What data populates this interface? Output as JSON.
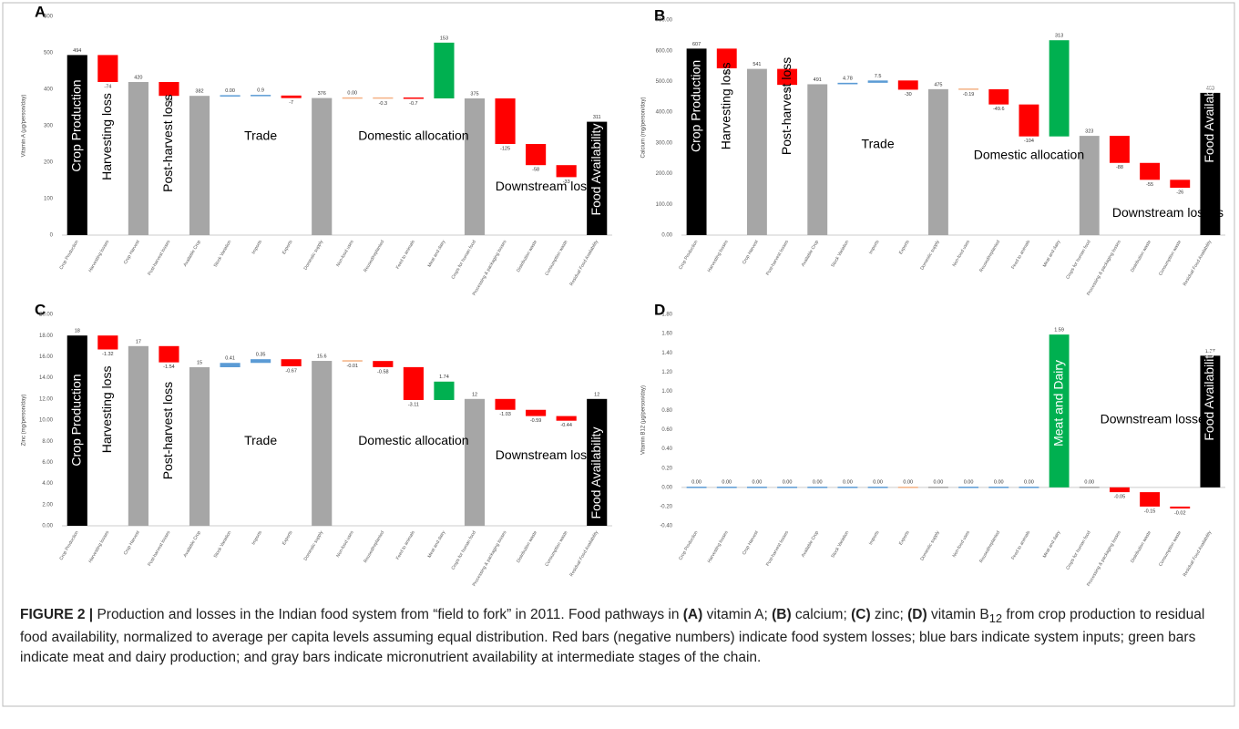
{
  "chart_data": [
    {
      "type": "waterfall",
      "panel": "A",
      "y_label": "Vitamin A (µg/person/day)",
      "categories": [
        "Crop Production",
        "Harvesting losses",
        "Crop Harvest",
        "Post-harvest losses",
        "Available Crop",
        "Stock Variation",
        "Imports",
        "Exports",
        "Domestic supply",
        "Non-food uses",
        "Reused/replanted",
        "Feed to animals",
        "Meat and dairy",
        "Crops for human food",
        "Processing & packaging losses",
        "Distribution waste",
        "Consumption waste",
        "Residual Food Availability"
      ],
      "measures": [
        "total",
        "relative",
        "total",
        "relative",
        "total",
        "relative",
        "relative",
        "relative",
        "total",
        "relative",
        "relative",
        "relative",
        "relative",
        "total",
        "relative",
        "relative",
        "relative",
        "total"
      ],
      "values": [
        494,
        -74,
        420,
        -38,
        382,
        0,
        0.9,
        -7,
        376,
        0,
        -0.3,
        -0.7,
        153,
        375,
        -125,
        -58,
        -33,
        311
      ],
      "value_labels": [
        "494",
        "-74",
        "420",
        "-38",
        "382",
        "0.00",
        "0.9",
        "-7",
        "376",
        "0.00",
        "-0.3",
        "-0.7",
        "153",
        "375",
        "-125",
        "-58",
        "-33",
        "311"
      ],
      "colors": [
        "#000000",
        "#ff0000",
        "#a6a6a6",
        "#ff0000",
        "#a6a6a6",
        "#5b9bd5",
        "#5b9bd5",
        "#ff0000",
        "#a6a6a6",
        "#f4b183",
        "#f4b183",
        "#ff0000",
        "#00b050",
        "#a6a6a6",
        "#ff0000",
        "#ff0000",
        "#ff0000",
        "#000000"
      ],
      "ylim": [
        0,
        600
      ],
      "yticks": [
        0,
        100,
        200,
        300,
        400,
        500,
        600
      ],
      "annotations": [
        "Crop Production",
        "Harvesting loss",
        "Post-harvest loss",
        "Trade",
        "Domestic allocation",
        "Downstream losses",
        "Food Availability"
      ]
    },
    {
      "type": "waterfall",
      "panel": "B",
      "y_label": "Calcium (mg/person/day)",
      "categories": [
        "Crop Production",
        "Harvesting losses",
        "Crop Harvest",
        "Post-harvest losses",
        "Available Crop",
        "Stock Variation",
        "Imports",
        "Exports",
        "Domestic supply",
        "Non-food uses",
        "Reused/replanted",
        "Feed to animals",
        "Meat and dairy",
        "Crops for human food",
        "Processing & packaging losses",
        "Distribution waste",
        "Consumption waste",
        "Residual Food Availability"
      ],
      "measures": [
        "total",
        "relative",
        "total",
        "relative",
        "total",
        "relative",
        "relative",
        "relative",
        "total",
        "relative",
        "relative",
        "relative",
        "relative",
        "total",
        "relative",
        "relative",
        "relative",
        "total"
      ],
      "values": [
        607,
        -64,
        541,
        -52,
        491,
        4.78,
        7.5,
        -30,
        475,
        -0.19,
        -49.6,
        -104,
        313,
        323,
        -88,
        -55,
        -26,
        463
      ],
      "colors": [
        "#000000",
        "#ff0000",
        "#a6a6a6",
        "#ff0000",
        "#a6a6a6",
        "#5b9bd5",
        "#5b9bd5",
        "#ff0000",
        "#a6a6a6",
        "#f4b183",
        "#ff0000",
        "#ff0000",
        "#00b050",
        "#a6a6a6",
        "#ff0000",
        "#ff0000",
        "#ff0000",
        "#000000"
      ],
      "ylim": [
        0,
        700
      ],
      "yticks": [
        {
          "value": 0,
          "label": "0.00"
        },
        {
          "value": 100,
          "label": "100.00"
        },
        {
          "value": 200,
          "label": "200.00"
        },
        {
          "value": 300,
          "label": "300.00"
        },
        {
          "value": 400,
          "label": "400.00"
        },
        {
          "value": 500,
          "label": "500.00"
        },
        {
          "value": 600,
          "label": "600.00"
        },
        {
          "value": 700,
          "label": "700.00"
        }
      ],
      "annotations": [
        "Crop Production",
        "Harvesting loss",
        "Post-harvest loss",
        "Trade",
        "Domestic allocation",
        "Downstream losses",
        "Food Availability"
      ]
    },
    {
      "type": "waterfall",
      "panel": "C",
      "y_label": "Zinc (mg/person/day)",
      "categories": [
        "Crop Production",
        "Harvesting losses",
        "Crop Harvest",
        "Post-harvest losses",
        "Available Crop",
        "Stock Variation",
        "Imports",
        "Exports",
        "Domestic supply",
        "Non-food uses",
        "Reused/replanted",
        "Feed to animals",
        "Meat and dairy",
        "Crops for human food",
        "Processing & packaging losses",
        "Distribution waste",
        "Consumption waste",
        "Residual Food Availability"
      ],
      "measures": [
        "total",
        "relative",
        "total",
        "relative",
        "total",
        "relative",
        "relative",
        "relative",
        "total",
        "relative",
        "relative",
        "relative",
        "relative",
        "total",
        "relative",
        "relative",
        "relative",
        "total"
      ],
      "values": [
        18,
        -1.32,
        17,
        -1.54,
        15,
        0.41,
        0.35,
        -0.67,
        15.6,
        -0.01,
        -0.58,
        -3.11,
        1.74,
        12,
        -1.03,
        -0.59,
        -0.44,
        12
      ],
      "colors": [
        "#000000",
        "#ff0000",
        "#a6a6a6",
        "#ff0000",
        "#a6a6a6",
        "#5b9bd5",
        "#5b9bd5",
        "#ff0000",
        "#a6a6a6",
        "#f4b183",
        "#ff0000",
        "#ff0000",
        "#00b050",
        "#a6a6a6",
        "#ff0000",
        "#ff0000",
        "#ff0000",
        "#000000"
      ],
      "ylim": [
        0,
        20
      ],
      "yticks": [
        {
          "value": 0,
          "label": "0.00"
        },
        {
          "value": 2,
          "label": "2.00"
        },
        {
          "value": 4,
          "label": "4.00"
        },
        {
          "value": 6,
          "label": "6.00"
        },
        {
          "value": 8,
          "label": "8.00"
        },
        {
          "value": 10,
          "label": "10.00"
        },
        {
          "value": 12,
          "label": "12.00"
        },
        {
          "value": 14,
          "label": "14.00"
        },
        {
          "value": 16,
          "label": "16.00"
        },
        {
          "value": 18,
          "label": "18.00"
        },
        {
          "value": 20,
          "label": "20.00"
        }
      ],
      "annotations": [
        "Crop Production",
        "Harvesting loss",
        "Post-harvest loss",
        "Trade",
        "Domestic allocation",
        "Downstream losses",
        "Food Availability"
      ]
    },
    {
      "type": "waterfall",
      "panel": "D",
      "y_label": "Vitamin B12 (µg/person/day)",
      "categories": [
        "Crop Production",
        "Harvesting losses",
        "Crop Harvest",
        "Post-harvest losses",
        "Available Crop",
        "Stock Variation",
        "Imports",
        "Exports",
        "Domestic supply",
        "Non-food uses",
        "Reused/replanted",
        "Feed to animals",
        "Meat and dairy",
        "Crops for human food",
        "Processing & packaging losses",
        "Distribution waste",
        "Consumption waste",
        "Residual Food Availability"
      ],
      "measures": [
        "total",
        "relative",
        "total",
        "relative",
        "total",
        "relative",
        "relative",
        "relative",
        "total",
        "relative",
        "relative",
        "relative",
        "relative",
        "total",
        "relative",
        "relative",
        "relative",
        "total"
      ],
      "values": [
        0,
        0,
        0,
        0,
        0,
        0,
        0,
        0,
        0,
        0,
        0,
        0,
        1.59,
        0,
        -0.05,
        -0.15,
        -0.02,
        1.37
      ],
      "value_labels": [
        "0.00",
        "0.00",
        "0.00",
        "0.00",
        "0.00",
        "0.00",
        "0.00",
        "0.00",
        "0.00",
        "0.00",
        "0.00",
        "0.00",
        "1.59",
        "0.00",
        "-0.05",
        "-0.15",
        "-0.02",
        "1.37"
      ],
      "colors": [
        "#5b9bd5",
        "#5b9bd5",
        "#5b9bd5",
        "#5b9bd5",
        "#5b9bd5",
        "#5b9bd5",
        "#5b9bd5",
        "#f4b183",
        "#a6a6a6",
        "#5b9bd5",
        "#5b9bd5",
        "#5b9bd5",
        "#00b050",
        "#a6a6a6",
        "#ff0000",
        "#ff0000",
        "#ff0000",
        "#000000"
      ],
      "ylim": [
        -0.4,
        1.8
      ],
      "yticks": [
        {
          "value": -0.4,
          "label": "-0.40"
        },
        {
          "value": -0.2,
          "label": "-0.20"
        },
        {
          "value": 0,
          "label": "0.00"
        },
        {
          "value": 0.2,
          "label": "0.20"
        },
        {
          "value": 0.4,
          "label": "0.40"
        },
        {
          "value": 0.6,
          "label": "0.60"
        },
        {
          "value": 0.8,
          "label": "0.80"
        },
        {
          "value": 1,
          "label": "1.00"
        },
        {
          "value": 1.2,
          "label": "1.20"
        },
        {
          "value": 1.4,
          "label": "1.40"
        },
        {
          "value": 1.6,
          "label": "1.60"
        },
        {
          "value": 1.8,
          "label": "1.80"
        }
      ],
      "annotations": [
        "Meat and Dairy",
        "Downstream losses",
        "Food Availability"
      ]
    }
  ],
  "caption": [
    {
      "text": "FIGURE 2 | ",
      "bold": true
    },
    {
      "text": "Production and losses in the Indian food system from “field to fork” in 2011. Food pathways in "
    },
    {
      "text": "(A)",
      "bold": true
    },
    {
      "text": " vitamin A; "
    },
    {
      "text": "(B)",
      "bold": true
    },
    {
      "text": " calcium; "
    },
    {
      "text": "(C)",
      "bold": true
    },
    {
      "text": " zinc; "
    },
    {
      "text": "(D)",
      "bold": true
    },
    {
      "text": " vitamin B"
    },
    {
      "text": "12",
      "sub": true
    },
    {
      "text": " from crop production to residual food availability, normalized to average per capita levels assuming equal distribution. Red bars (negative numbers) indicate food system losses; blue bars indicate system inputs; green bars indicate meat and dairy production; and gray bars indicate micronutrient availability at intermediate stages of the chain."
    }
  ]
}
